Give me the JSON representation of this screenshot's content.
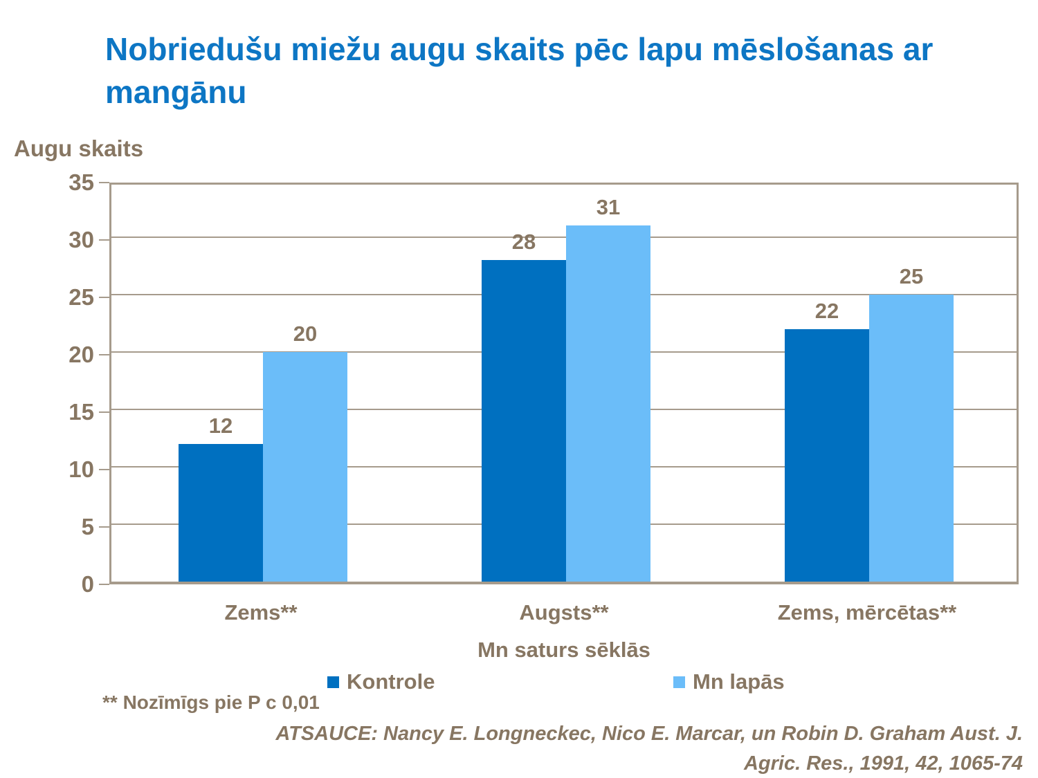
{
  "title": {
    "text": "Nobriedušu miežu augu skaits pēc lapu mēslošanas ar mangānu"
  },
  "chart_data": {
    "type": "bar",
    "title": "Nobriedušu miežu augu skaits pēc lapu mēslošanas ar mangānu",
    "ylabel": "Augu skaits",
    "xlabel": "Mn saturs sēklās",
    "categories": [
      "Zems**",
      "Augsts**",
      "Zems, mērcētas**"
    ],
    "series": [
      {
        "name": "Kontrole",
        "color": "#0070C0",
        "values": [
          12,
          28,
          22
        ]
      },
      {
        "name": "Mn lapās",
        "color": "#6BBDF9",
        "values": [
          20,
          31,
          25
        ]
      }
    ],
    "ylim": [
      0,
      35
    ],
    "yticks": [
      0,
      5,
      10,
      15,
      20,
      25,
      30,
      35
    ],
    "grid": true,
    "bar_labels": true,
    "legend_position": "bottom"
  },
  "footnote": "** Nozīmīgs pie P c 0,01",
  "reference": {
    "line1": "ATSAUCE: Nancy E. Longneckec, Nico E. Marcar, un Robin D. Graham Aust. J.",
    "line2": "Agric. Res., 1991, 42, 1065-74"
  },
  "colors": {
    "title": "#0D76C4",
    "text": "#877662",
    "axis": "#A69B8C",
    "series_dark_blue": "#0070C0",
    "series_light_blue": "#6BBDF9"
  }
}
